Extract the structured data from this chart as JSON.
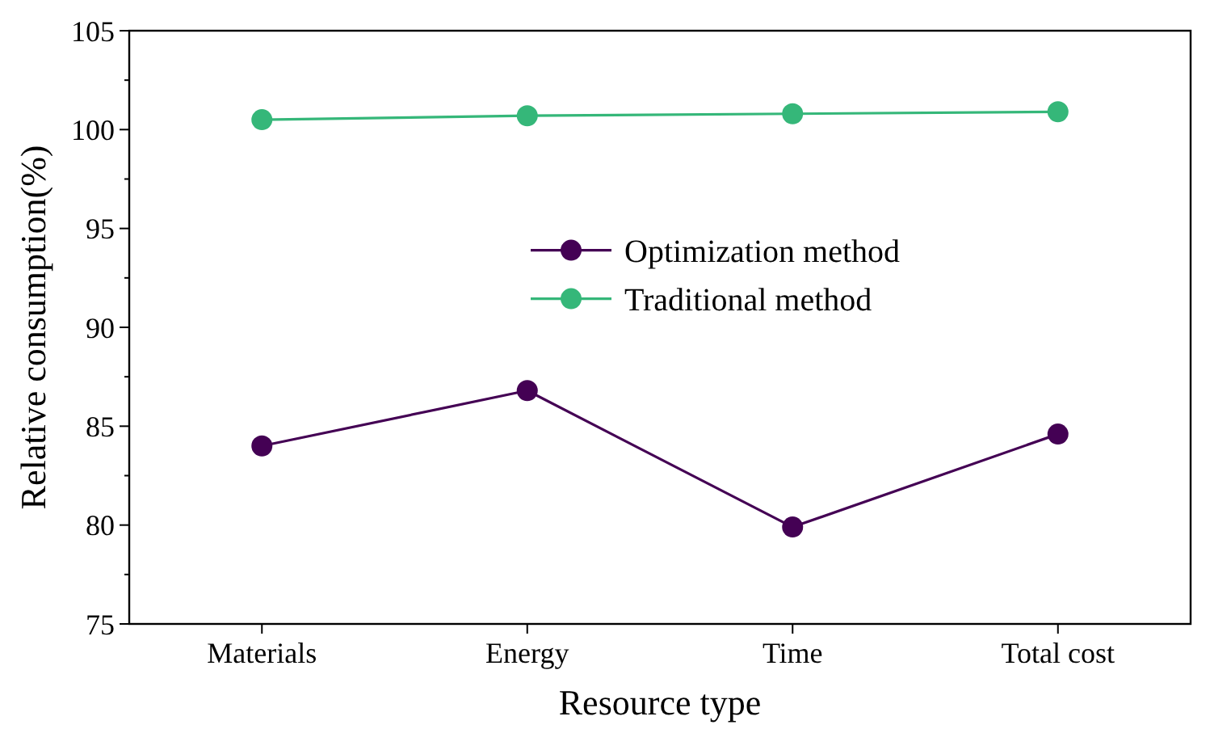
{
  "chart_data": {
    "type": "line",
    "xlabel": "Resource type",
    "ylabel": "Relative consumption(%)",
    "categories": [
      "Materials",
      "Energy",
      "Time",
      "Total cost"
    ],
    "series": [
      {
        "name": "Optimization method",
        "color": "#440154",
        "values": [
          84.0,
          86.8,
          79.9,
          84.6
        ]
      },
      {
        "name": "Traditional method",
        "color": "#35b779",
        "values": [
          100.5,
          100.7,
          100.8,
          100.9
        ]
      }
    ],
    "ylim": [
      75,
      105
    ],
    "yticks": [
      75,
      80,
      85,
      90,
      95,
      100,
      105
    ],
    "legend": "center",
    "marker": "circle",
    "line_style": "solid",
    "grid": false
  }
}
